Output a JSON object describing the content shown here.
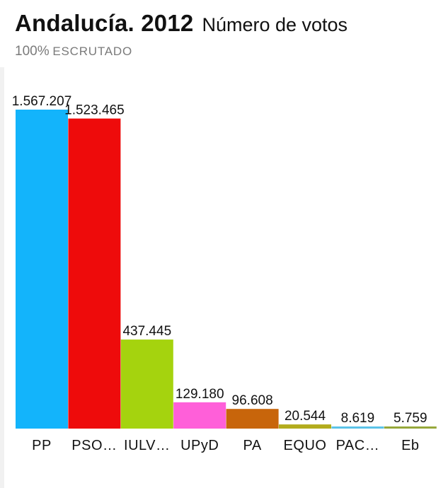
{
  "header": {
    "title": "Andalucía. 2012",
    "subtitle": "Número de votos",
    "status_percent": "100%",
    "status_text": "ESCRUTADO"
  },
  "chart_data": {
    "type": "bar",
    "categories": [
      "PP",
      "PSO…",
      "IULV…",
      "UPyD",
      "PA",
      "EQUO",
      "PAC…",
      "Eb"
    ],
    "values": [
      1567207,
      1523465,
      437445,
      129180,
      96608,
      20544,
      8619,
      5759
    ],
    "value_labels": [
      "1.567.207",
      "1.523.465",
      "437.445",
      "129.180",
      "96.608",
      "20.544",
      "8.619",
      "5.759"
    ],
    "colors": [
      "#13b4fb",
      "#ee0b0b",
      "#a5d30e",
      "#ff5fd9",
      "#c8650b",
      "#b3ac1d",
      "#5bc3e8",
      "#96a83b"
    ],
    "ylim": [
      0,
      1567207
    ],
    "grid": false,
    "legend": "none"
  }
}
